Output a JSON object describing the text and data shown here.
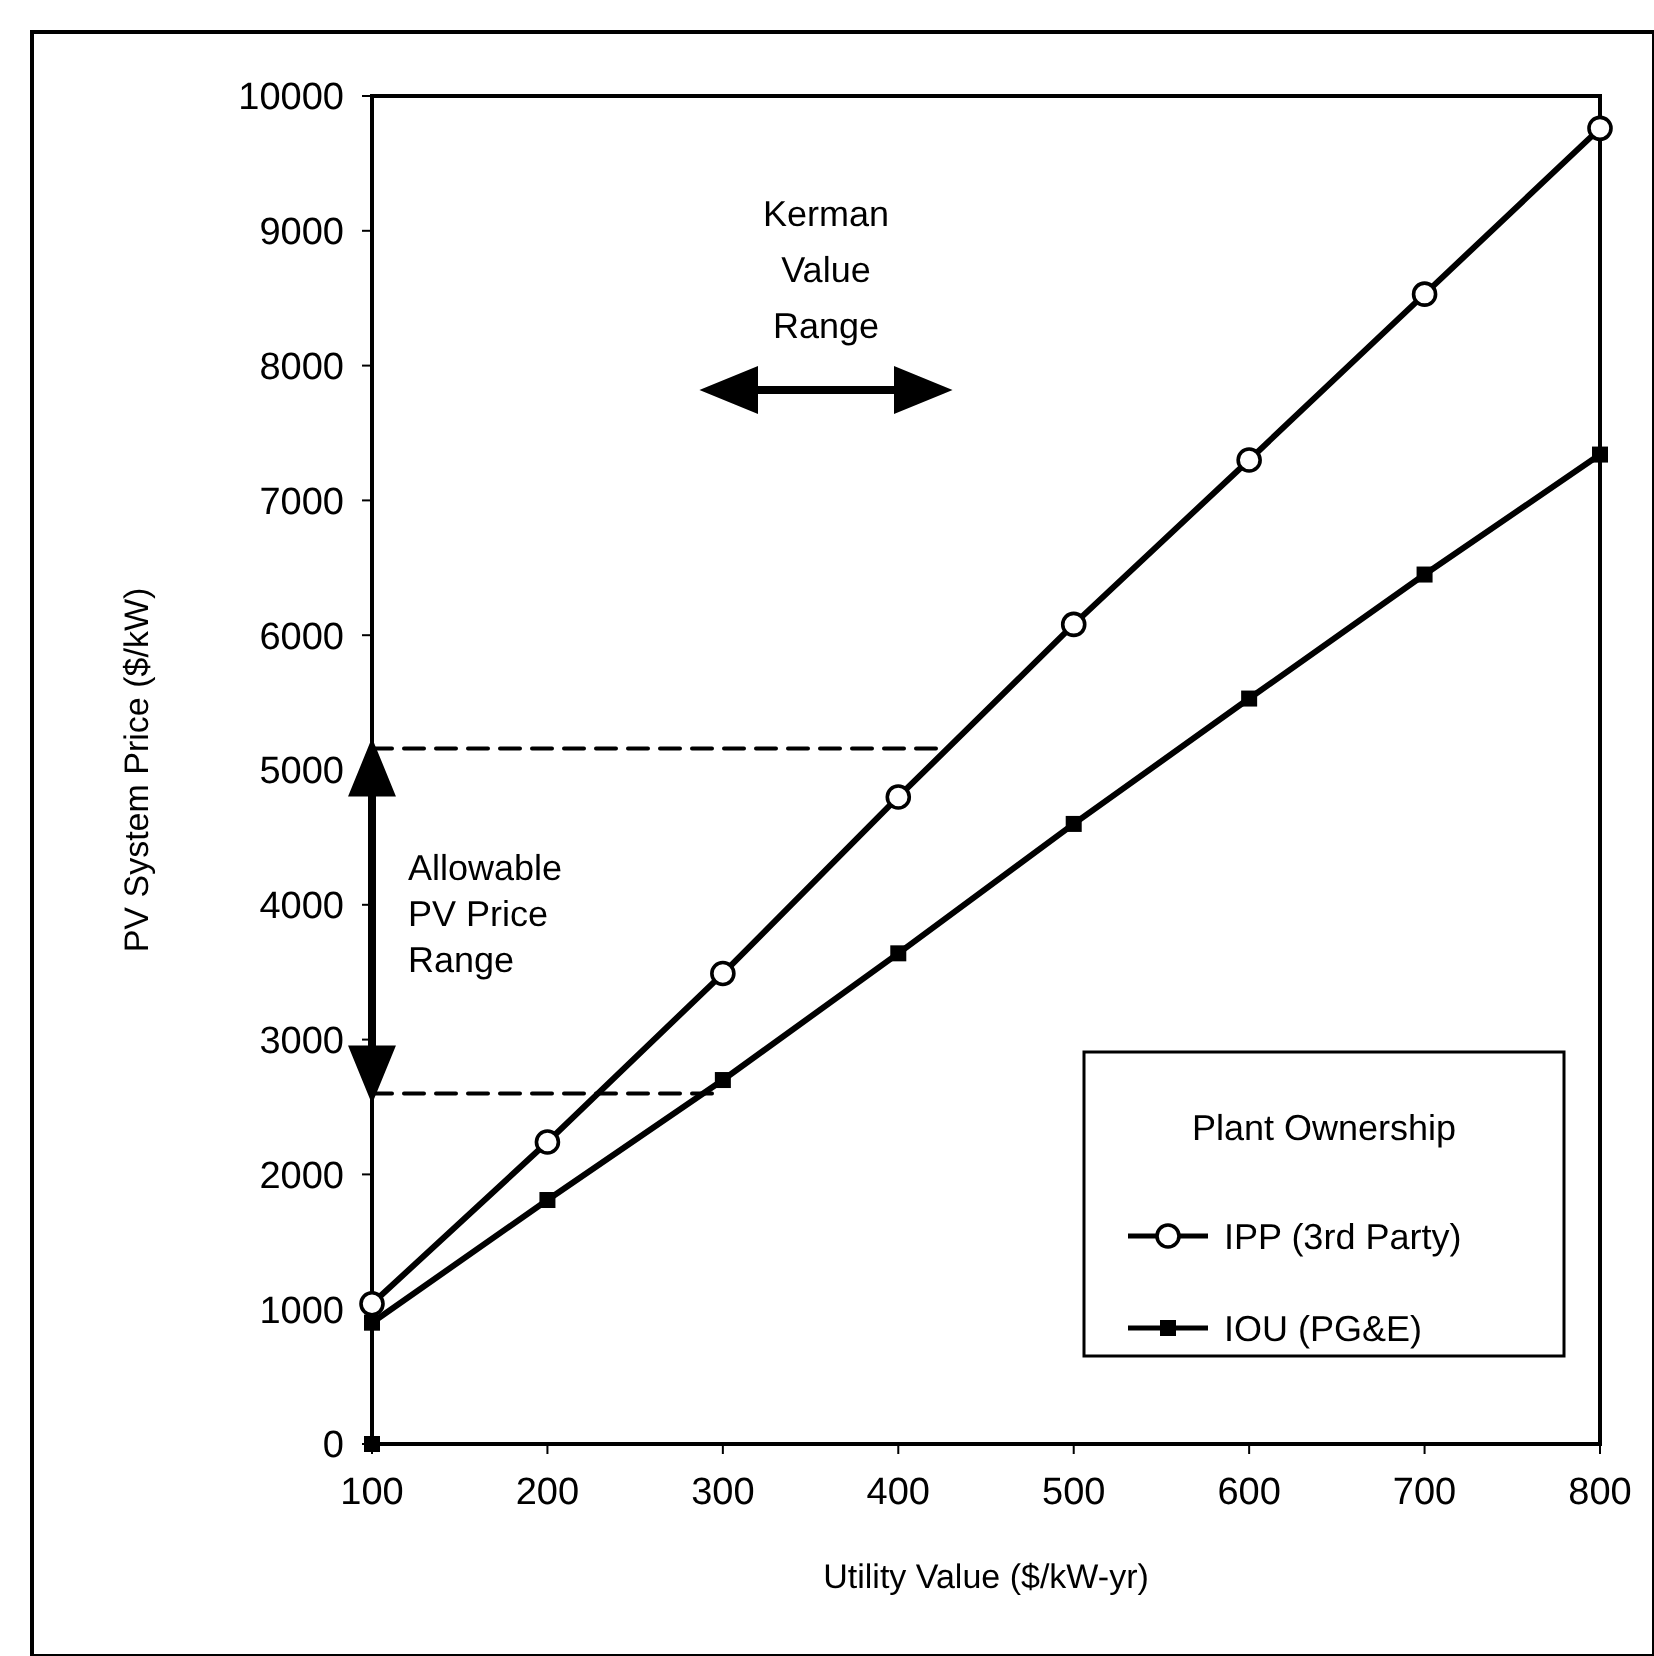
{
  "chart_data": {
    "type": "line",
    "xlabel": "Utility Value ($/kW-yr)",
    "ylabel": "PV System Price ($/kW)",
    "legend_title": "Plant Ownership",
    "legend": "bottom right",
    "grid": false,
    "xlim": [
      100,
      800
    ],
    "xticks": [
      100,
      200,
      300,
      400,
      500,
      600,
      700,
      800
    ],
    "ylim": [
      0,
      10000
    ],
    "yticks": [
      0,
      1000,
      2000,
      3000,
      4000,
      5000,
      6000,
      7000,
      8000,
      9000,
      10000
    ],
    "x": [
      100,
      200,
      300,
      400,
      500,
      600,
      700,
      800
    ],
    "series": [
      {
        "name": "IPP (3rd Party)",
        "color": "#000000",
        "marker": "circle",
        "values": [
          1040,
          2240,
          3490,
          4800,
          6080,
          7300,
          8530,
          9760
        ]
      },
      {
        "name": "IOU (PG&E)",
        "color": "#000000",
        "marker": "square",
        "values": [
          900,
          1810,
          2700,
          3640,
          4600,
          5530,
          6450,
          7340
        ]
      },
      {
        "type": "scatter",
        "color": "#000000",
        "marker": "square",
        "x": [
          100
        ],
        "values": [
          0
        ]
      },
      {
        "color": "#000000",
        "marker": "none",
        "line_style": "dashed",
        "x": [
          100,
          425
        ],
        "values": [
          5160,
          5160
        ]
      },
      {
        "color": "#000000",
        "marker": "none",
        "line_style": "dashed",
        "x": [
          100,
          300
        ],
        "values": [
          2600,
          2600
        ]
      }
    ],
    "annotations": [
      "Kerman Value Range",
      "Allowable PV Price Range"
    ]
  }
}
